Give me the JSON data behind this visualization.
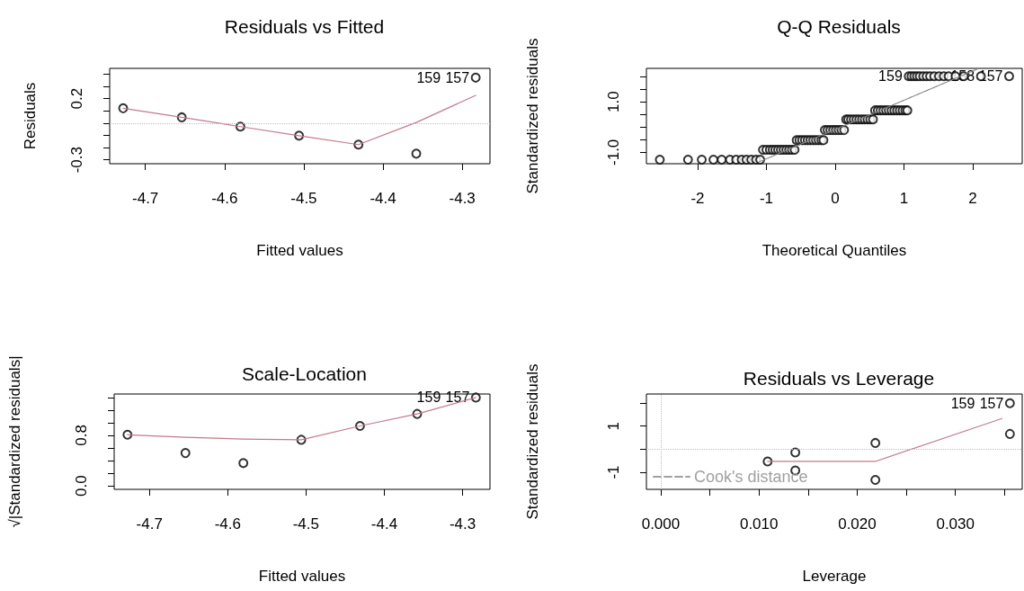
{
  "chart_data": [
    {
      "type": "scatter",
      "title": "Residuals vs Fitted",
      "xlabel": "Fitted values",
      "ylabel": "Residuals",
      "xlim": [
        -4.745,
        -4.265
      ],
      "xticks": [
        -4.7,
        -4.6,
        -4.5,
        -4.4,
        -4.3
      ],
      "ylim": [
        -0.332,
        0.447
      ],
      "yticks": [
        -0.3,
        {
          "value": -0.2,
          "label": null
        },
        {
          "value": -0.1,
          "label": null
        },
        {
          "value": 0,
          "label": null
        },
        {
          "value": 0.1,
          "label": null
        },
        0.2,
        {
          "value": 0.3,
          "label": null
        },
        {
          "value": 0.4,
          "label": null
        }
      ],
      "grid": false,
      "ref_lines": [
        {
          "axis": "y",
          "value": 0,
          "color": "#bebebe",
          "line_style": "dotted"
        }
      ],
      "series": [
        {
          "color": "#000000",
          "marker": "circle",
          "x": [
            -4.728,
            -4.654,
            -4.58,
            -4.506,
            -4.431,
            -4.358,
            -4.283
          ],
          "values": [
            0.121,
            0.047,
            -0.029,
            -0.103,
            -0.176,
            -0.25,
            0.371
          ]
        },
        {
          "type": "line",
          "color": "#c27b8c",
          "line_style": "solid",
          "marker": "none",
          "x": [
            -4.728,
            -4.654,
            -4.58,
            -4.506,
            -4.431,
            -4.358,
            -4.283
          ],
          "values": [
            0.121,
            0.047,
            -0.029,
            -0.103,
            -0.176,
            0.005,
            0.226
          ]
        }
      ],
      "annotations": [
        {
          "text": "157",
          "x": -4.283,
          "y": 0.371
        },
        {
          "text": "159",
          "x": -4.283,
          "y": 0.371
        }
      ]
    },
    {
      "type": "scatter",
      "title": "Q-Q Residuals",
      "xlabel": "Theoretical Quantiles",
      "ylabel": "Standardized residuals",
      "xlim": [
        -2.745,
        2.72
      ],
      "xticks": [
        -2,
        -1,
        0,
        1,
        2
      ],
      "ylim": [
        -1.45,
        2.32
      ],
      "yticks": [
        {
          "value": -1,
          "label": "-1.0"
        },
        {
          "value": -0.5,
          "label": null
        },
        {
          "value": 0,
          "label": null
        },
        {
          "value": 0.5,
          "label": null
        },
        {
          "value": 1,
          "label": "1.0"
        },
        {
          "value": 1.5,
          "label": null
        },
        {
          "value": 2,
          "label": null
        }
      ],
      "grid": false,
      "series": [
        {
          "color": "#000000",
          "marker": "circle",
          "x": [
            -2.55,
            -2.14,
            -1.94,
            -1.77,
            -1.65,
            -1.53,
            -1.44,
            -1.36,
            -1.29,
            -1.22,
            -1.15,
            -1.09,
            -1.05,
            -1.0,
            -0.95,
            -0.91,
            -0.87,
            -0.83,
            -0.79,
            -0.75,
            -0.71,
            -0.67,
            -0.63,
            -0.59,
            -0.56,
            -0.52,
            -0.48,
            -0.44,
            -0.4,
            -0.36,
            -0.32,
            -0.28,
            -0.24,
            -0.2,
            -0.17,
            -0.15,
            -0.11,
            -0.07,
            -0.03,
            0.01,
            0.05,
            0.09,
            0.13,
            0.16,
            0.19,
            0.23,
            0.27,
            0.31,
            0.35,
            0.39,
            0.43,
            0.47,
            0.51,
            0.55,
            0.58,
            0.62,
            0.66,
            0.7,
            0.74,
            0.78,
            0.82,
            0.86,
            0.9,
            0.94,
            0.98,
            1.02,
            1.05,
            1.07,
            1.11,
            1.15,
            1.19,
            1.23,
            1.28,
            1.33,
            1.38,
            1.44,
            1.51,
            1.58,
            1.65,
            1.75,
            1.87,
            2.12,
            2.53
          ],
          "values": [
            -1.29,
            -1.29,
            -1.29,
            -1.29,
            -1.29,
            -1.29,
            -1.29,
            -1.29,
            -1.29,
            -1.29,
            -1.29,
            -1.29,
            -0.9,
            -0.9,
            -0.9,
            -0.9,
            -0.9,
            -0.9,
            -0.9,
            -0.9,
            -0.9,
            -0.9,
            -0.9,
            -0.9,
            -0.52,
            -0.52,
            -0.52,
            -0.52,
            -0.52,
            -0.52,
            -0.52,
            -0.52,
            -0.52,
            -0.52,
            -0.52,
            -0.12,
            -0.12,
            -0.12,
            -0.12,
            -0.12,
            -0.12,
            -0.12,
            -0.12,
            0.3,
            0.3,
            0.3,
            0.3,
            0.3,
            0.3,
            0.3,
            0.3,
            0.3,
            0.3,
            0.3,
            0.66,
            0.66,
            0.66,
            0.66,
            0.66,
            0.66,
            0.66,
            0.66,
            0.66,
            0.66,
            0.66,
            0.66,
            0.66,
            2.01,
            2.01,
            2.01,
            2.01,
            2.01,
            2.01,
            2.01,
            2.01,
            2.01,
            2.01,
            2.01,
            2.01,
            2.01,
            2.01,
            2.01,
            2.01
          ]
        },
        {
          "type": "line",
          "color": "#808080",
          "line_style": "dotted",
          "marker": "none",
          "x": [
            -1.1,
            2.09
          ],
          "values": [
            -1.37,
            2.32
          ]
        }
      ],
      "annotations": [
        {
          "text": "159",
          "x": 1.07,
          "y": 2.01
        },
        {
          "text": "158",
          "x": 2.12,
          "y": 2.01
        },
        {
          "text": "157",
          "x": 2.53,
          "y": 2.01
        }
      ]
    },
    {
      "type": "scatter",
      "title": "Scale-Location",
      "xlabel": "Fitted values",
      "ylabel": "√|Standardized residuals|",
      "xlim": [
        -4.745,
        -4.265
      ],
      "xticks": [
        -4.7,
        -4.6,
        -4.5,
        -4.4,
        -4.3
      ],
      "ylim": [
        -0.056,
        1.456
      ],
      "yticks": [
        {
          "value": 0,
          "label": "0.0"
        },
        {
          "value": 0.2,
          "label": null
        },
        {
          "value": 0.4,
          "label": null
        },
        {
          "value": 0.6,
          "label": null
        },
        0.8,
        {
          "value": 1,
          "label": null
        },
        {
          "value": 1.2,
          "label": null
        },
        {
          "value": 1.4,
          "label": null
        }
      ],
      "grid": false,
      "series": [
        {
          "color": "#000000",
          "marker": "circle",
          "x": [
            -4.728,
            -4.654,
            -4.58,
            -4.506,
            -4.431,
            -4.358,
            -4.283
          ],
          "values": [
            0.81,
            0.52,
            0.36,
            0.73,
            0.95,
            1.14,
            1.4
          ]
        },
        {
          "type": "line",
          "color": "#c27b8c",
          "line_style": "solid",
          "marker": "none",
          "x": [
            -4.728,
            -4.654,
            -4.58,
            -4.506,
            -4.431,
            -4.358,
            -4.283
          ],
          "values": [
            0.81,
            0.77,
            0.74,
            0.73,
            0.95,
            1.14,
            1.4
          ]
        }
      ],
      "annotations": [
        {
          "text": "157",
          "x": -4.283,
          "y": 1.4
        },
        {
          "text": "159",
          "x": -4.283,
          "y": 1.4
        }
      ]
    },
    {
      "type": "scatter",
      "title": "Residuals vs Leverage",
      "xlabel": "Leverage",
      "ylabel": "Standardized residuals",
      "xlim": [
        -0.00146,
        0.0368
      ],
      "xticks": [
        {
          "value": 0,
          "label": "0.000"
        },
        {
          "value": 0.005,
          "label": null
        },
        {
          "value": 0.01,
          "label": "0.010"
        },
        {
          "value": 0.015,
          "label": null
        },
        {
          "value": 0.02,
          "label": "0.020"
        },
        {
          "value": 0.025,
          "label": null
        },
        {
          "value": 0.03,
          "label": "0.030"
        },
        {
          "value": 0.035,
          "label": null
        }
      ],
      "ylim": [
        -1.74,
        2.39
      ],
      "yticks": [
        -1,
        {
          "value": 0,
          "label": null
        },
        1,
        {
          "value": 2,
          "label": null
        }
      ],
      "grid": false,
      "legend": "bottom left",
      "ref_lines": [
        {
          "axis": "y",
          "value": 0,
          "color": "#bebebe",
          "line_style": "dotted"
        },
        {
          "axis": "x",
          "value": 0,
          "color": "#bebebe",
          "line_style": "dotted"
        }
      ],
      "series": [
        {
          "color": "#000000",
          "marker": "circle",
          "x": [
            0.01088,
            0.0137,
            0.0137,
            0.02185,
            0.02185,
            0.03555,
            0.03555
          ],
          "values": [
            -0.53,
            -0.14,
            -0.92,
            0.27,
            -1.33,
            1.99,
            0.66
          ]
        },
        {
          "type": "line",
          "color": "#c27b8c",
          "line_style": "solid",
          "marker": "none",
          "x": [
            0.01088,
            0.02185,
            0.03474
          ],
          "values": [
            -0.53,
            -0.53,
            1.33
          ]
        },
        {
          "type": "line",
          "name": "Cook's distance",
          "color": "#a0a0a0",
          "line_style": "dashed",
          "marker": "none"
        }
      ],
      "annotations": [
        {
          "text": "157",
          "x": 0.03555,
          "y": 1.99
        },
        {
          "text": "159",
          "x": 0.03555,
          "y": 1.99
        }
      ]
    }
  ]
}
